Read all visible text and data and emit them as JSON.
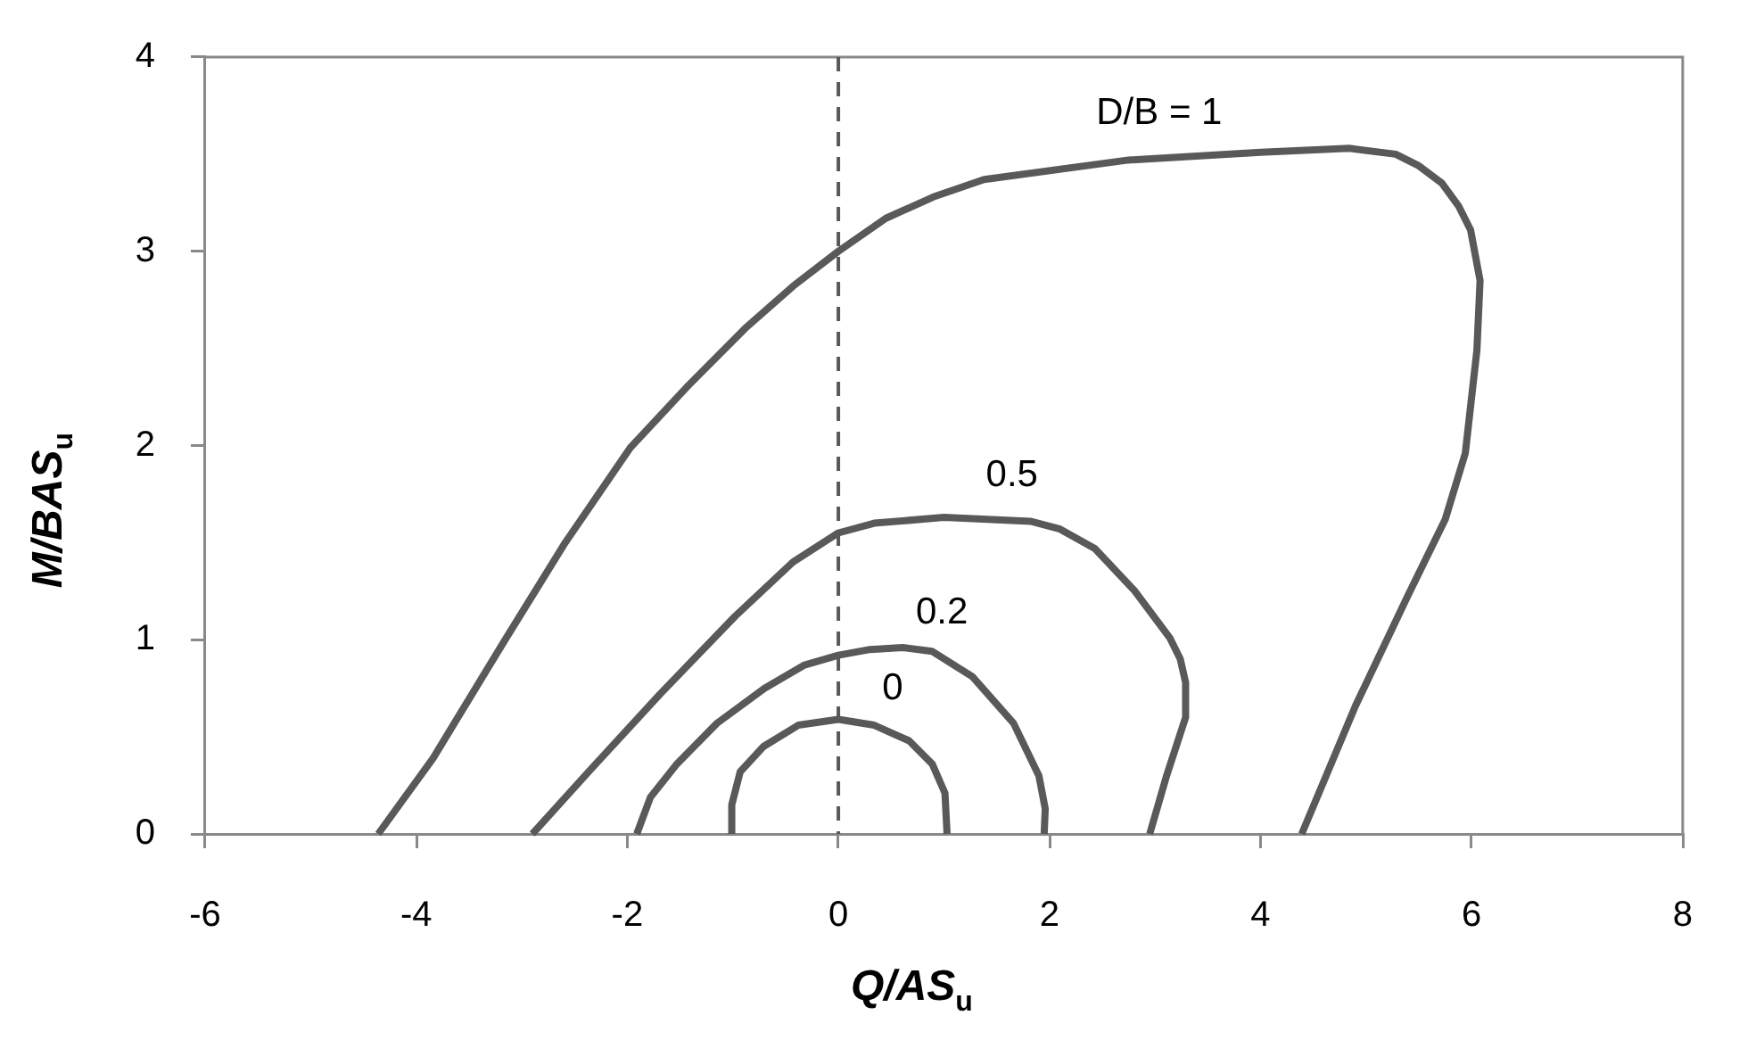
{
  "chart_data": {
    "type": "line",
    "xlabel": "Q/AS$_{u}$",
    "ylabel": "M/BAS$_{u}$",
    "xlim": [
      -6,
      8
    ],
    "xticks": [
      -6,
      -4,
      -2,
      0,
      2,
      4,
      6,
      8
    ],
    "ylim": [
      0,
      4
    ],
    "yticks": [
      0,
      1,
      2,
      3,
      4
    ],
    "legend": false,
    "marker": "none",
    "series": [
      {
        "name": "D/B = 1",
        "color": "#595959",
        "x": [
          -4.36,
          -3.84,
          -3.18,
          -2.6,
          -1.97,
          -1.42,
          -0.87,
          -0.43,
          0,
          0.45,
          0.9,
          1.38,
          2.75,
          4.0,
          4.84,
          5.28,
          5.5,
          5.72,
          5.88,
          5.99,
          6.08,
          6.05,
          5.94,
          5.75,
          5.39,
          4.9,
          4.39
        ],
        "values": [
          0,
          0.39,
          0.98,
          1.49,
          1.99,
          2.31,
          2.61,
          2.82,
          3.0,
          3.17,
          3.28,
          3.37,
          3.47,
          3.51,
          3.53,
          3.5,
          3.44,
          3.35,
          3.23,
          3.11,
          2.85,
          2.49,
          1.96,
          1.62,
          1.22,
          0.66,
          0
        ]
      },
      {
        "name": "0.5",
        "color": "#595959",
        "x": [
          -2.9,
          -2.35,
          -1.69,
          -0.98,
          -0.43,
          -0.2,
          0,
          0.34,
          1.0,
          1.82,
          2.1,
          2.43,
          2.81,
          3.14,
          3.24,
          3.29,
          3.29,
          3.11,
          2.95
        ],
        "values": [
          0,
          0.33,
          0.72,
          1.12,
          1.4,
          1.48,
          1.55,
          1.6,
          1.63,
          1.61,
          1.57,
          1.47,
          1.25,
          1.01,
          0.9,
          0.78,
          0.6,
          0.3,
          0
        ]
      },
      {
        "name": "0.2",
        "color": "#595959",
        "x": [
          -1.91,
          -1.78,
          -1.53,
          -1.15,
          -0.7,
          -0.32,
          0,
          0.3,
          0.61,
          0.89,
          1.27,
          1.66,
          1.9,
          1.96,
          1.95
        ],
        "values": [
          0,
          0.19,
          0.36,
          0.57,
          0.75,
          0.87,
          0.92,
          0.95,
          0.96,
          0.94,
          0.81,
          0.57,
          0.3,
          0.13,
          0
        ]
      },
      {
        "name": "0",
        "color": "#595959",
        "x": [
          -1.01,
          -1.01,
          -0.93,
          -0.71,
          -0.38,
          0,
          0.34,
          0.67,
          0.89,
          1.01,
          1.03
        ],
        "values": [
          0,
          0.15,
          0.32,
          0.45,
          0.56,
          0.59,
          0.56,
          0.48,
          0.36,
          0.21,
          0
        ]
      }
    ],
    "ref_lines": [
      {
        "axis": "x",
        "value": 0,
        "color": "#595959",
        "line_style": "dashed"
      }
    ]
  }
}
